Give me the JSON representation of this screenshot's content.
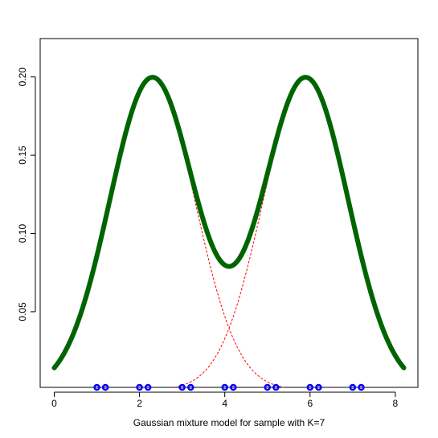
{
  "chart_data": {
    "type": "line",
    "title": "",
    "xlabel": "Gaussian mixture model for sample with K=7",
    "ylabel": "",
    "xlim": [
      -0.33,
      8.53
    ],
    "ylim": [
      0.0017,
      0.2245
    ],
    "x_ticks": [
      0,
      2,
      4,
      6,
      8
    ],
    "x_tick_labels": [
      "0",
      "2",
      "4",
      "6",
      "8"
    ],
    "y_ticks": [
      0.05,
      0.1,
      0.15,
      0.2
    ],
    "y_tick_labels": [
      "0.05",
      "0.10",
      "0.15",
      "0.20"
    ],
    "grid": false,
    "legend": "none",
    "mixture": {
      "x_range": [
        0,
        8.2
      ],
      "color": "#006400",
      "components": [
        {
          "mean": 2.3,
          "sd": 1.0,
          "weight": 0.5
        },
        {
          "mean": 5.9,
          "sd": 1.0,
          "weight": 0.5
        }
      ]
    },
    "component_style": {
      "color": "#ff0000",
      "dash": "dashed"
    },
    "sample_points": {
      "color": "#0000ff",
      "y": 0.0017,
      "x": [
        1.0,
        1.2,
        2.0,
        2.2,
        3.0,
        3.2,
        4.0,
        4.2,
        5.0,
        5.2,
        6.0,
        6.2,
        7.0,
        7.2
      ]
    }
  }
}
